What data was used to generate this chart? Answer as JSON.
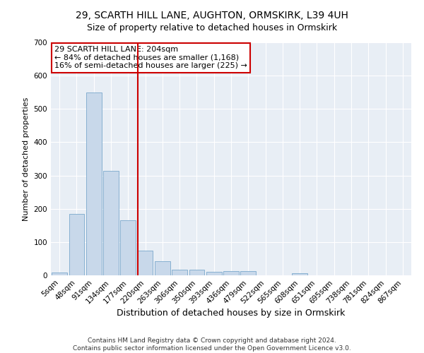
{
  "title": "29, SCARTH HILL LANE, AUGHTON, ORMSKIRK, L39 4UH",
  "subtitle": "Size of property relative to detached houses in Ormskirk",
  "xlabel": "Distribution of detached houses by size in Ormskirk",
  "ylabel": "Number of detached properties",
  "categories": [
    "5sqm",
    "48sqm",
    "91sqm",
    "134sqm",
    "177sqm",
    "220sqm",
    "263sqm",
    "306sqm",
    "350sqm",
    "393sqm",
    "436sqm",
    "479sqm",
    "522sqm",
    "565sqm",
    "608sqm",
    "651sqm",
    "695sqm",
    "738sqm",
    "781sqm",
    "824sqm",
    "867sqm"
  ],
  "values": [
    8,
    185,
    550,
    315,
    165,
    75,
    42,
    18,
    18,
    10,
    12,
    12,
    0,
    0,
    6,
    0,
    0,
    0,
    0,
    0,
    0
  ],
  "bar_color": "#c8d8ea",
  "bar_edge_color": "#7aa8cc",
  "vline_x_index": 4.55,
  "vline_color": "#cc0000",
  "annotation_text": "29 SCARTH HILL LANE: 204sqm\n← 84% of detached houses are smaller (1,168)\n16% of semi-detached houses are larger (225) →",
  "annotation_box_color": "white",
  "annotation_box_edge": "#cc0000",
  "ylim": [
    0,
    700
  ],
  "yticks": [
    0,
    100,
    200,
    300,
    400,
    500,
    600,
    700
  ],
  "bg_color": "#e8eef5",
  "footer_line1": "Contains HM Land Registry data © Crown copyright and database right 2024.",
  "footer_line2": "Contains public sector information licensed under the Open Government Licence v3.0.",
  "title_fontsize": 10,
  "subtitle_fontsize": 9,
  "xlabel_fontsize": 9,
  "ylabel_fontsize": 8,
  "tick_fontsize": 7.5,
  "annotation_fontsize": 8,
  "footer_fontsize": 6.5
}
